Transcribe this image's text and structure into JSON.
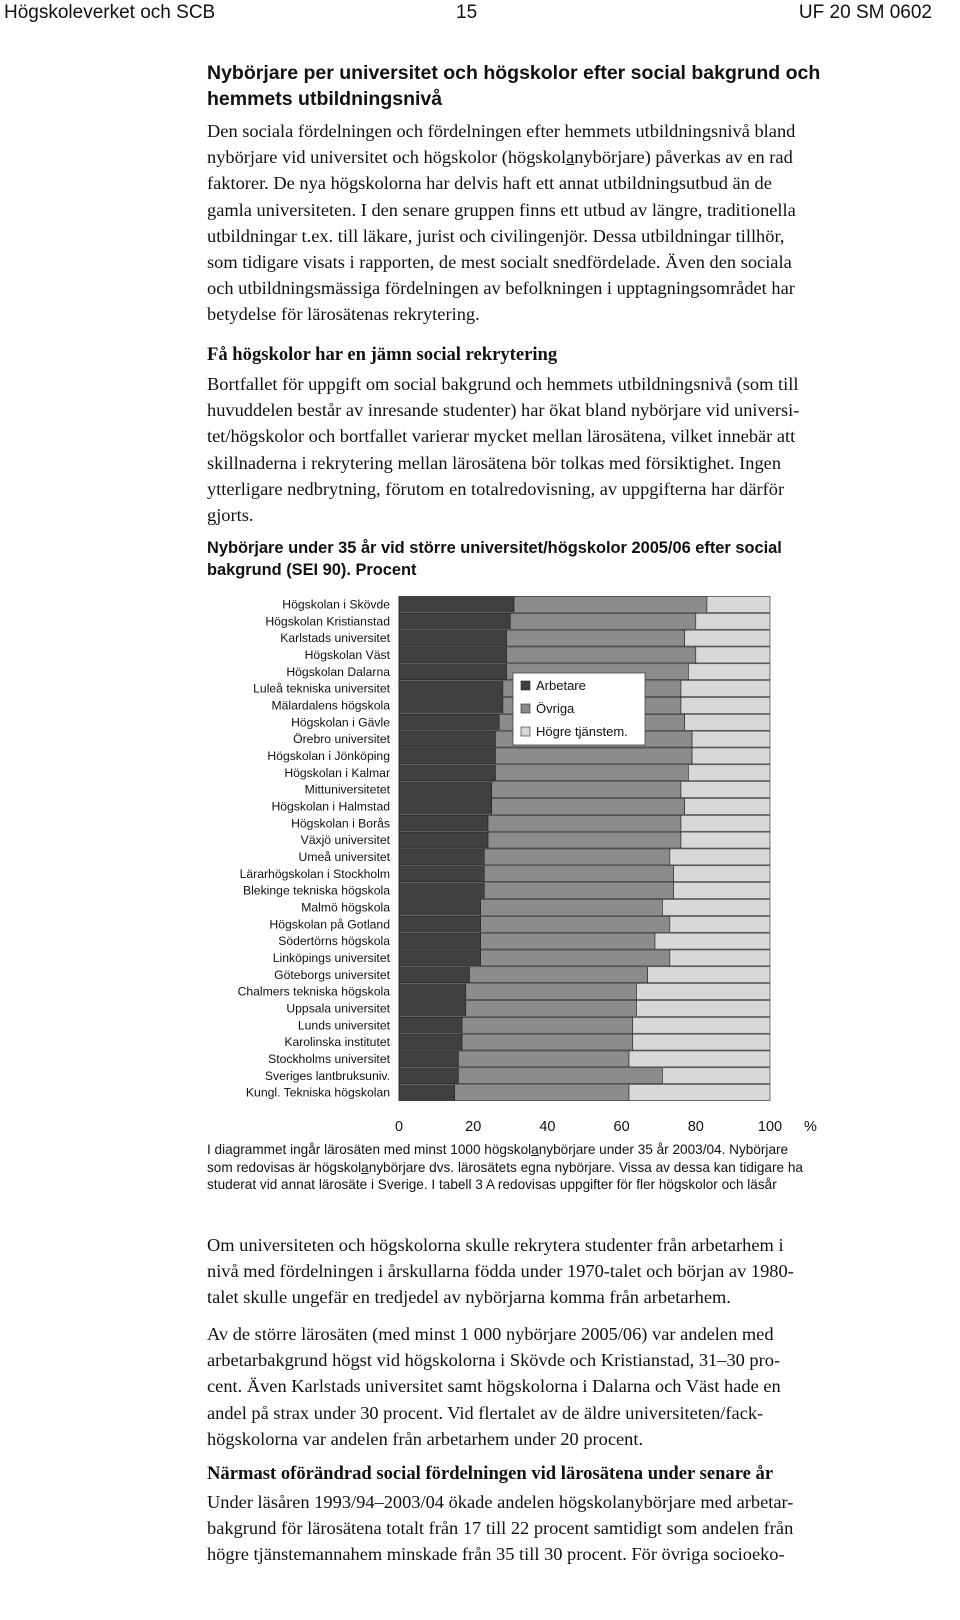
{
  "header": {
    "left": "Högskoleverket och SCB",
    "page": "15",
    "right": "UF 20 SM 0602"
  },
  "section": {
    "title_line1": "Nybörjare per universitet och högskolor efter social bakgrund och",
    "title_line2": "hemmets utbildningsnivå",
    "intro": [
      "Den sociala fördelningen och fördelningen efter hemmets utbildningsnivå bland",
      "nybörjare vid universitet och högskolor (högskolanybörjare) påverkas av en rad",
      "faktorer. De nya högskolorna har delvis haft ett annat utbildningsutbud än de",
      "gamla universiteten. I den senare gruppen finns ett utbud av längre, traditionella",
      "utbildningar t.ex. till läkare, jurist och civilingenjör. Dessa utbildningar tillhör,",
      "som tidigare visats i rapporten, de mest socialt snedfördelade. Även den sociala",
      "och utbildningsmässiga fördelningen av befolkningen i upptagningsområdet har",
      "betydelse för lärosätenas rekrytering."
    ]
  },
  "subsection1": {
    "heading": "Få högskolor har en jämn social rekrytering",
    "lines": [
      "Bortfallet för uppgift om social bakgrund och hemmets utbildningsnivå (som till",
      "huvuddelen består av inresande studenter) har ökat bland nybörjare vid universi-",
      "tet/högskolor och bortfallet varierar mycket mellan lärosätena, vilket innebär att",
      "skillnaderna i rekrytering mellan lärosätena bör tolkas med försiktighet. Ingen",
      "ytterligare nedbrytning, förutom en totalredovisning, av uppgifterna har därför",
      "gjorts."
    ]
  },
  "figure": {
    "title_line1": "Nybörjare under 35 år vid större universitet/högskolor 2005/06 efter social",
    "title_line2": "bakgrund (SEI 90). Procent",
    "note_lines": [
      "I diagrammet ingår lärosäten med minst 1000 högskolanybörjare under 35 år 2003/04. Nybörjare",
      "som redovisas är högskolanybörjare dvs. lärosätets egna nybörjare. Vissa av dessa kan tidigare ha",
      "studerat vid annat lärosäte i Sverige. I tabell 3 A redovisas uppgifter för fler högskolor och läsår"
    ]
  },
  "chart_data": {
    "type": "bar",
    "orientation": "horizontal",
    "stacked": true,
    "unit_label": "%",
    "xlim": [
      0,
      100
    ],
    "xticks": [
      0,
      20,
      40,
      60,
      80,
      100
    ],
    "legend_position": "inside-upper-center",
    "categories": [
      "Högskolan i Skövde",
      "Högskolan Kristianstad",
      "Karlstads universitet",
      "Högskolan Väst",
      "Högskolan Dalarna",
      "Luleå tekniska universitet",
      "Mälardalens högskola",
      "Högskolan i Gävle",
      "Örebro universitet",
      "Högskolan i Jönköping",
      "Högskolan i Kalmar",
      "Mittuniversitetet",
      "Högskolan i Halmstad",
      "Högskolan i Borås",
      "Växjö universitet",
      "Umeå universitet",
      "Lärarhögskolan i Stockholm",
      "Blekinge tekniska högskola",
      "Malmö högskola",
      "Högskolan på Gotland",
      "Södertörns högskola",
      "Linköpings universitet",
      "Göteborgs universitet",
      "Chalmers tekniska högskola",
      "Uppsala universitet",
      "Lunds universitet",
      "Karolinska institutet",
      "Stockholms universitet",
      "Sveriges lantbruksuniv.",
      "Kungl. Tekniska högskolan"
    ],
    "series": [
      {
        "name": "Arbetare",
        "color": "#404040",
        "values": [
          31,
          30,
          29,
          29,
          29,
          28,
          28,
          27,
          26,
          26,
          26,
          25,
          25,
          24,
          24,
          23,
          23,
          23,
          22,
          22,
          22,
          22,
          19,
          18,
          18,
          17,
          17,
          16,
          16,
          15
        ]
      },
      {
        "name": "Övriga",
        "color": "#8c8c8c",
        "values": [
          52,
          50,
          48,
          51,
          49,
          48,
          48,
          50,
          53,
          53,
          52,
          51,
          52,
          52,
          52,
          50,
          51,
          51,
          49,
          51,
          47,
          51,
          48,
          46,
          46,
          46,
          46,
          46,
          55,
          47
        ]
      },
      {
        "name": "Högre tjänstem.",
        "color": "#d8d8d8",
        "values": [
          17,
          20,
          23,
          20,
          22,
          24,
          24,
          23,
          21,
          21,
          22,
          24,
          23,
          24,
          24,
          27,
          26,
          26,
          29,
          27,
          31,
          27,
          33,
          36,
          36,
          37,
          37,
          38,
          29,
          38
        ]
      }
    ]
  },
  "after_chart": {
    "para1": [
      "Om universiteten och högskolorna skulle rekrytera studenter från arbetarhem i",
      "nivå med fördelningen i årskullarna födda under 1970-talet och början av 1980-",
      "talet skulle ungefär en tredjedel av nybörjarna komma från arbetarhem."
    ],
    "para2": [
      "Av de större lärosäten (med minst 1 000 nybörjare 2005/06) var andelen med",
      "arbetarbakgrund högst vid högskolorna i Skövde och Kristianstad, 31–30 pro-",
      "cent. Även Karlstads universitet samt högskolorna i Dalarna och Väst hade en",
      "andel på strax under 30 procent. Vid flertalet av de äldre universiteten/fack-",
      "högskolorna var andelen från arbetarhem under 20 procent."
    ]
  },
  "subsection2": {
    "heading": "Närmast oförändrad social fördelningen vid lärosätena under senare år",
    "lines": [
      "Under läsåren 1993/94–2003/04 ökade andelen högskolanybörjare med arbetar-",
      "bakgrund för lärosätena totalt från 17 till 22 procent samtidigt som andelen från",
      "högre tjänstemannahem minskade från 35 till 30 procent. För övriga socioeko-"
    ]
  }
}
